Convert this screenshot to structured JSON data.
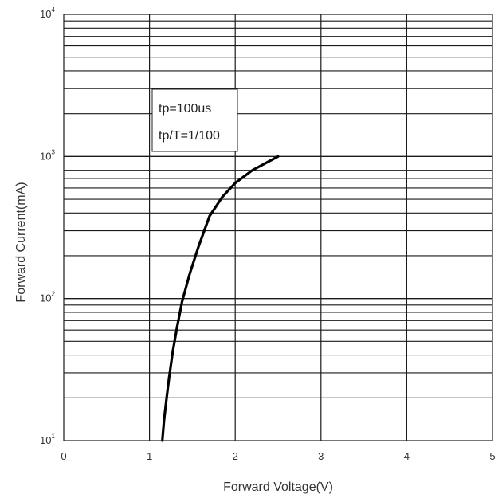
{
  "chart_data": {
    "type": "line",
    "xlabel": "Forward Voltage(V)",
    "ylabel": "Forward Current(mA)",
    "xlim": [
      0,
      5
    ],
    "ylim": [
      10,
      10000
    ],
    "y_scale": "log",
    "grid": true,
    "x_ticks": [
      "0",
      "1",
      "2",
      "3",
      "4",
      "5"
    ],
    "y_ticks": [
      {
        "base": "10",
        "exp": "1",
        "value": 10
      },
      {
        "base": "10",
        "exp": "2",
        "value": 100
      },
      {
        "base": "10",
        "exp": "3",
        "value": 1000
      },
      {
        "base": "10",
        "exp": "4",
        "value": 10000
      }
    ],
    "annotation": [
      "tp=100us",
      "tp/T=1/100"
    ],
    "series": [
      {
        "x": [
          1.15,
          1.17,
          1.2,
          1.23,
          1.27,
          1.32,
          1.38,
          1.47,
          1.57,
          1.7,
          1.85,
          2.0,
          2.2,
          2.5
        ],
        "y": [
          10,
          14,
          20,
          28,
          42,
          62,
          95,
          150,
          230,
          380,
          520,
          650,
          800,
          1000
        ]
      }
    ],
    "colors": {
      "line": "#000000",
      "grid": "#1a1a1a",
      "text": "#333333"
    }
  }
}
